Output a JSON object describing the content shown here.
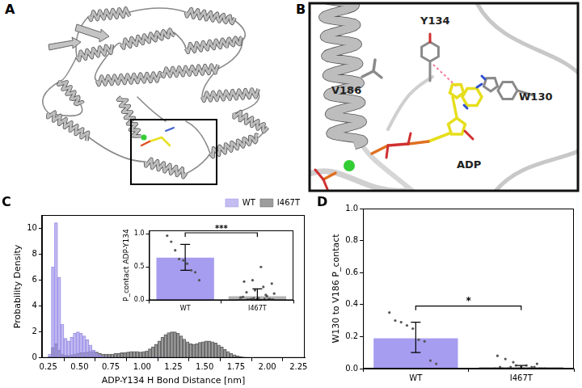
{
  "panel_labels": [
    "A",
    "B",
    "C",
    "D"
  ],
  "structure_labels": [
    "Y134",
    "V186",
    "W130",
    "ADP"
  ],
  "chart_data": [
    {
      "type": "histogram",
      "xlabel": "ADP-Y134 H Bond Distance [nm]",
      "ylabel": "Probability Density",
      "bins": [
        0.25,
        0.275,
        0.3,
        0.325,
        0.35,
        0.375,
        0.4,
        0.425,
        0.45,
        0.475,
        0.5,
        0.525,
        0.55,
        0.575,
        0.6,
        0.625,
        0.65,
        0.675,
        0.7,
        0.725,
        0.75,
        0.775,
        0.8,
        0.825,
        0.85,
        0.875,
        0.9,
        0.925,
        0.95,
        0.975,
        1.0,
        1.025,
        1.05,
        1.075,
        1.1,
        1.125,
        1.15,
        1.175,
        1.2,
        1.225,
        1.25,
        1.275,
        1.3,
        1.325,
        1.35,
        1.375,
        1.4,
        1.425,
        1.45,
        1.475,
        1.5,
        1.525,
        1.55,
        1.575,
        1.6,
        1.625,
        1.65,
        1.675,
        1.7,
        1.725,
        1.75,
        1.775,
        1.8,
        1.825,
        1.85,
        1.875,
        1.9,
        1.925,
        1.95,
        1.975,
        2.0
      ],
      "series": [
        {
          "name": "WT",
          "color": "#9b8fe8",
          "values": [
            0.3,
            7.0,
            10.4,
            6.2,
            2.6,
            1.5,
            1.3,
            1.6,
            1.9,
            2.0,
            1.9,
            1.7,
            1.4,
            1.0,
            0.6,
            0.35,
            0.2,
            0.12,
            0.08,
            0.06,
            0.05,
            0.05,
            0.04,
            0.04,
            0.04,
            0.05,
            0.05,
            0.04,
            0.04,
            0.04,
            0.04,
            0.04,
            0.05,
            0.05,
            0.06,
            0.06,
            0.05,
            0.05,
            0.04,
            0.04,
            0.04,
            0.04,
            0.04,
            0.03,
            0.03,
            0.03,
            0.03,
            0.03,
            0.02,
            0.02,
            0.02,
            0.02,
            0.01,
            0.01,
            0,
            0,
            0,
            0,
            0,
            0,
            0,
            0,
            0,
            0,
            0,
            0,
            0,
            0,
            0,
            0
          ]
        },
        {
          "name": "I467T",
          "color": "#5a5a5a",
          "values": [
            0.1,
            0.8,
            1.1,
            0.6,
            0.3,
            0.2,
            0.2,
            0.25,
            0.3,
            0.35,
            0.4,
            0.4,
            0.45,
            0.5,
            0.5,
            0.45,
            0.35,
            0.3,
            0.3,
            0.3,
            0.3,
            0.35,
            0.35,
            0.4,
            0.4,
            0.45,
            0.5,
            0.5,
            0.5,
            0.45,
            0.5,
            0.55,
            0.7,
            0.85,
            1.05,
            1.3,
            1.6,
            1.8,
            1.95,
            2.0,
            2.0,
            1.9,
            1.7,
            1.45,
            1.25,
            1.1,
            1.05,
            1.1,
            1.2,
            1.25,
            1.3,
            1.3,
            1.25,
            1.15,
            1.0,
            0.85,
            0.65,
            0.5,
            0.35,
            0.25,
            0.15,
            0.1,
            0.06,
            0.04,
            0.02,
            0.01,
            0,
            0,
            0,
            0
          ]
        }
      ],
      "xlim": [
        0.2,
        2.3
      ],
      "xticks": [
        0.25,
        {
          "value": 0.5,
          "label": "0.50"
        },
        0.75,
        {
          "value": 1,
          "label": "1.00"
        },
        1.25,
        {
          "value": 1.5,
          "label": "1.50"
        },
        1.75,
        {
          "value": 2,
          "label": "2.00"
        },
        2.25
      ],
      "ylim": [
        0,
        11
      ],
      "yticks": [
        0,
        2,
        4,
        6,
        8,
        10
      ],
      "legend": "upper right"
    },
    {
      "type": "bar",
      "ylabel": "P_contact ADP-Y134",
      "categories": [
        "WT",
        "I467T"
      ],
      "values": [
        0.64,
        0.06
      ],
      "error_low": [
        0.45,
        0
      ],
      "error_high": [
        0.84,
        0.17
      ],
      "points": [
        [
          0.97,
          0.88,
          0.75,
          0.62,
          0.6,
          0.55,
          0.45,
          0.42,
          0.3
        ],
        [
          0,
          0.01,
          0,
          0.02,
          0.01,
          0,
          0.03,
          0,
          0.01,
          0.05,
          0.02,
          0,
          0.01,
          0.04,
          0,
          0.02,
          0.08,
          0.1,
          0.12,
          0.15,
          0.2,
          0.25,
          0.28,
          0.3,
          0.5,
          0.02,
          0,
          0.01,
          0.03,
          0.06
        ]
      ],
      "colors": [
        "#a69df0",
        "#b4b4b4"
      ],
      "ylim": [
        0,
        1.05
      ],
      "yticks": [
        {
          "value": 0,
          "label": "0.0"
        },
        0.5,
        {
          "value": 1,
          "label": "1.0"
        }
      ],
      "annotation": "***"
    },
    {
      "type": "bar",
      "ylabel": "W130 to V186 P_contact",
      "categories": [
        "WT",
        "I467T"
      ],
      "values": [
        0.19,
        0.01
      ],
      "error_low": [
        0.1,
        0
      ],
      "error_high": [
        0.29,
        0.02
      ],
      "points": [
        [
          0.35,
          0.3,
          0.29,
          0.27,
          0.25,
          0.18,
          0.17,
          0.05,
          0.03
        ],
        [
          0,
          0,
          0.01,
          0,
          0.02,
          0,
          0.01,
          0,
          0.03,
          0,
          0.01,
          0.04,
          0.06,
          0.08,
          0,
          0.01,
          0.02,
          0,
          0.01,
          0
        ]
      ],
      "colors": [
        "#a69df0",
        "#b4b4b4"
      ],
      "ylim": [
        0,
        1
      ],
      "yticks": [
        {
          "value": 0,
          "label": "0.0"
        },
        0.2,
        0.4,
        0.6,
        0.8,
        {
          "value": 1,
          "label": "1.0"
        }
      ],
      "annotation": "*"
    }
  ]
}
